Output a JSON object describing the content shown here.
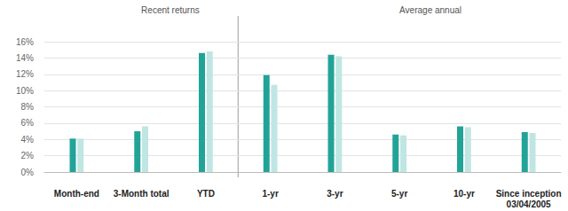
{
  "chart_data": {
    "type": "bar",
    "annotations": [
      "Recent returns",
      "Average annual"
    ],
    "categories": [
      "Month-end",
      "3-Month total",
      "YTD",
      "1-yr",
      "3-yr",
      "5-yr",
      "10-yr",
      "Since inception\n03/04/2005"
    ],
    "series": [
      {
        "color": "#22a398",
        "values": [
          4.1,
          5.0,
          14.6,
          11.9,
          14.4,
          4.6,
          5.6,
          4.9
        ]
      },
      {
        "color": "#bfe6e2",
        "values": [
          4.1,
          5.6,
          14.8,
          10.7,
          14.2,
          4.5,
          5.5,
          4.8
        ]
      }
    ],
    "ylim": [
      0,
      16
    ],
    "yticks": [
      {
        "value": 0,
        "label": "0%"
      },
      {
        "value": 2,
        "label": "2%"
      },
      {
        "value": 4,
        "label": "4%"
      },
      {
        "value": 6,
        "label": "6%"
      },
      {
        "value": 8,
        "label": "8%"
      },
      {
        "value": 10,
        "label": "10%"
      },
      {
        "value": 12,
        "label": "12%"
      },
      {
        "value": 14,
        "label": "14%"
      },
      {
        "value": 16,
        "label": "16%"
      }
    ],
    "grid": true
  }
}
